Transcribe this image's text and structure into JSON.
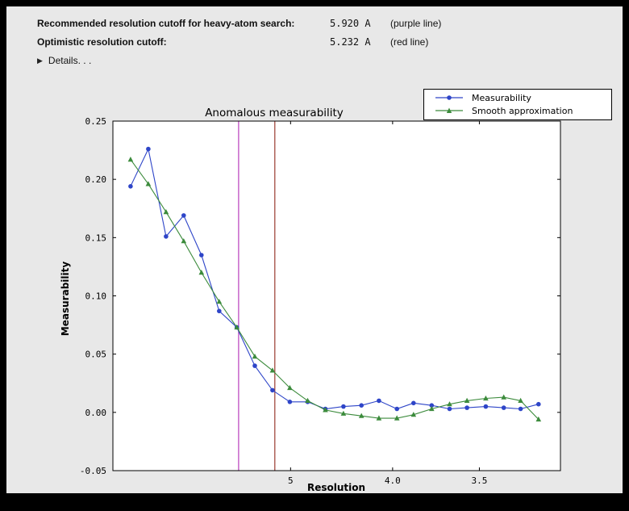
{
  "window": {
    "bg": "#e8e8e8"
  },
  "header": {
    "rows": [
      {
        "label": "Recommended resolution cutoff for heavy-atom search:",
        "value": "5.920 A",
        "note": "(purple line)"
      },
      {
        "label": "Optimistic resolution cutoff:",
        "value": "5.232 A",
        "note": "(red line)"
      }
    ],
    "details_label": "Details. . ."
  },
  "chart_data": {
    "type": "line",
    "title": "Anomalous measurability",
    "xlabel": "Resolution",
    "ylabel": "Measurability",
    "x_axis_scale": "inverse_resolution_squared",
    "xlim_resolution": [
      35.0,
      3.17
    ],
    "ylim": [
      -0.05,
      0.25
    ],
    "yticks": [
      -0.05,
      0.0,
      0.05,
      0.1,
      0.15,
      0.2,
      0.25
    ],
    "xticks": [
      {
        "resolution": 5.0,
        "label": "5"
      },
      {
        "resolution": 4.0,
        "label": "4.0"
      },
      {
        "resolution": 3.5,
        "label": "3.5"
      }
    ],
    "resolution_shells": [
      14.56,
      10.77,
      8.93,
      7.8,
      7.01,
      6.42,
      5.96,
      5.58,
      5.27,
      5.01,
      4.78,
      4.58,
      4.4,
      4.24,
      4.1,
      3.97,
      3.86,
      3.75,
      3.65,
      3.56,
      3.47,
      3.39,
      3.32,
      3.25
    ],
    "series": [
      {
        "name": "Measurability",
        "color": "#2e45c8",
        "marker": "circle",
        "values": [
          0.194,
          0.226,
          0.151,
          0.169,
          0.135,
          0.087,
          0.073,
          0.04,
          0.019,
          0.009,
          0.009,
          0.003,
          0.005,
          0.006,
          0.01,
          0.003,
          0.008,
          0.006,
          0.003,
          0.004,
          0.005,
          0.004,
          0.003,
          0.007
        ]
      },
      {
        "name": "Smooth approximation",
        "color": "#3c8b3c",
        "marker": "triangle",
        "values": [
          0.217,
          0.196,
          0.172,
          0.147,
          0.12,
          0.095,
          0.073,
          0.048,
          0.036,
          0.021,
          0.01,
          0.002,
          -0.001,
          -0.003,
          -0.005,
          -0.005,
          -0.002,
          0.003,
          0.007,
          0.01,
          0.012,
          0.013,
          0.01,
          -0.006
        ]
      }
    ],
    "vlines": [
      {
        "resolution": 5.92,
        "color": "#b93cbd",
        "name": "purple line"
      },
      {
        "resolution": 5.232,
        "color": "#9a3a30",
        "name": "red line"
      }
    ],
    "legend_position": "upper right",
    "grid": false
  }
}
